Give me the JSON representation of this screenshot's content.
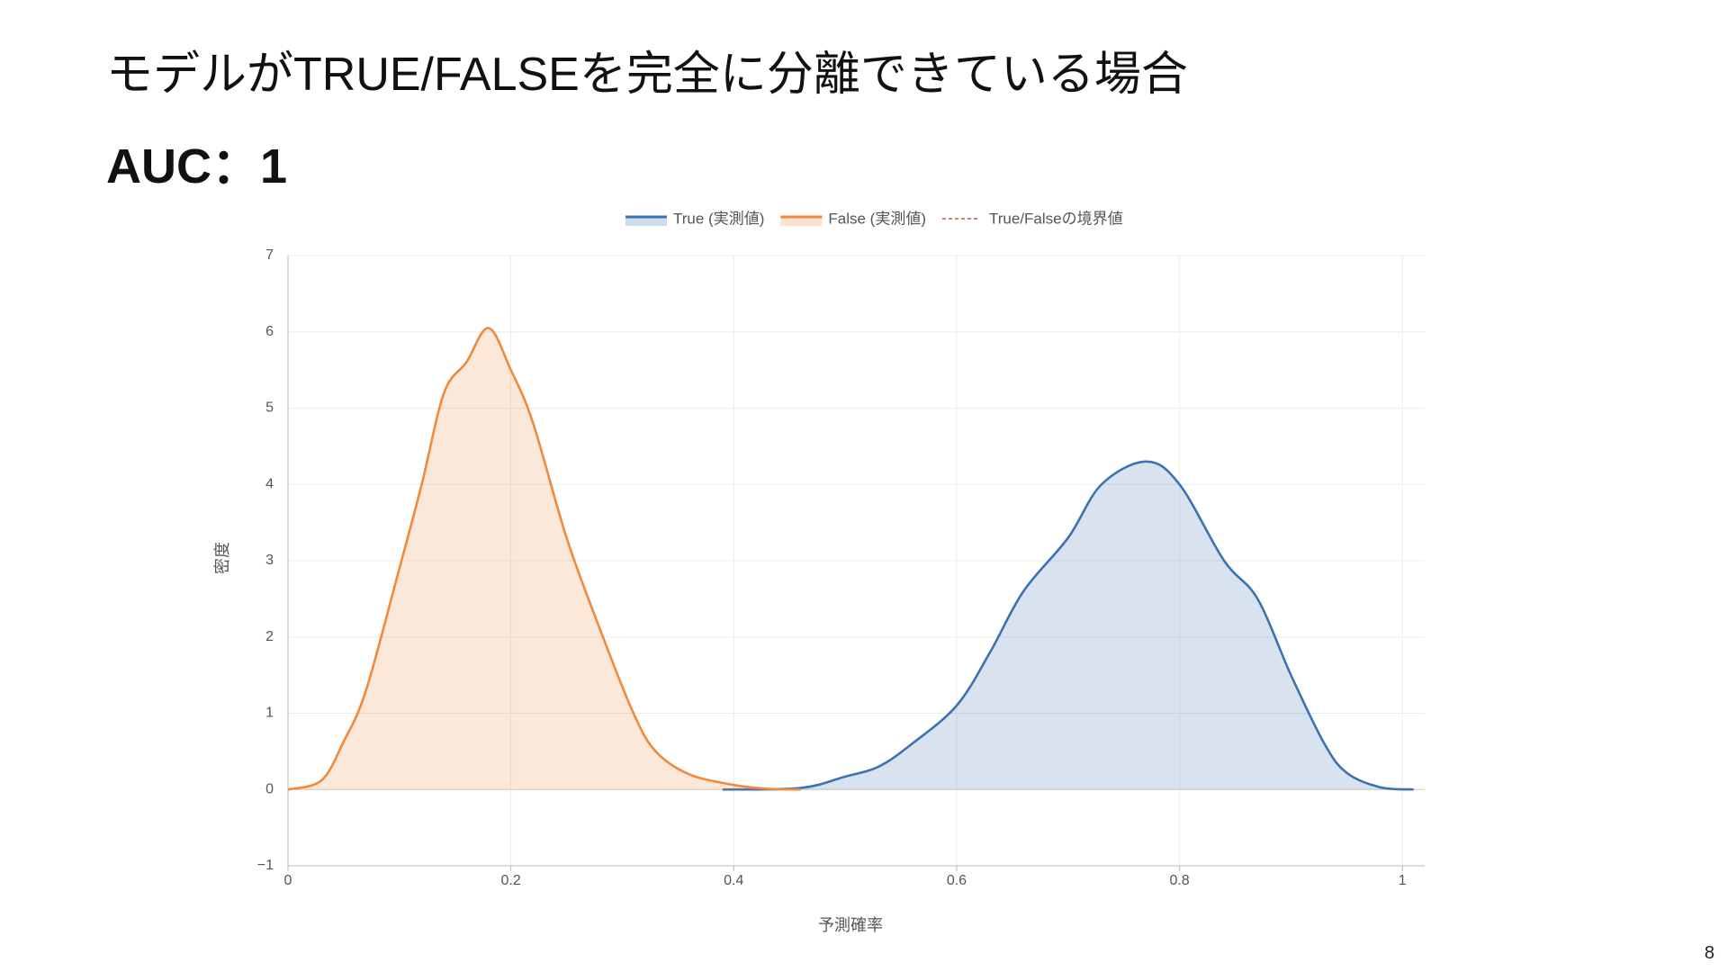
{
  "slide_title": "モデルがTRUE/FALSEを完全に分離できている場合",
  "subtitle": "AUC：1",
  "page_number": "8",
  "chart_data": {
    "type": "area",
    "xlabel": "予測確率",
    "ylabel": "密度",
    "xlim": [
      0,
      1.02
    ],
    "ylim": [
      -1,
      7
    ],
    "xticks": [
      0,
      0.2,
      0.4,
      0.6,
      0.8,
      1
    ],
    "yticks": [
      {
        "value": -1,
        "label": "−1"
      },
      0,
      1,
      2,
      3,
      4,
      5,
      6,
      7
    ],
    "grid": true,
    "legend": "top",
    "series": [
      {
        "name": "True (実測値)",
        "color": "#3d72b0",
        "x": [
          0.39,
          0.46,
          0.5,
          0.53,
          0.56,
          0.6,
          0.63,
          0.66,
          0.7,
          0.73,
          0.77,
          0.8,
          0.84,
          0.87,
          0.9,
          0.93,
          0.95,
          0.98,
          1.01
        ],
        "values": [
          0,
          0.02,
          0.17,
          0.3,
          0.6,
          1.1,
          1.8,
          2.6,
          3.3,
          4.0,
          4.3,
          4.0,
          3.0,
          2.5,
          1.5,
          0.6,
          0.22,
          0.03,
          0
        ]
      },
      {
        "name": "False (実測値)",
        "color": "#ef8a3c",
        "x": [
          0,
          0.03,
          0.05,
          0.07,
          0.1,
          0.12,
          0.14,
          0.16,
          0.18,
          0.2,
          0.22,
          0.25,
          0.28,
          0.31,
          0.33,
          0.36,
          0.4,
          0.43,
          0.46
        ],
        "values": [
          0,
          0.12,
          0.63,
          1.3,
          2.9,
          4.0,
          5.2,
          5.6,
          6.05,
          5.5,
          4.8,
          3.3,
          2.1,
          1.0,
          0.5,
          0.2,
          0.06,
          0.01,
          0
        ]
      }
    ],
    "threshold": {
      "name": "True/Falseの境界値",
      "color": "#c0504d"
    }
  }
}
